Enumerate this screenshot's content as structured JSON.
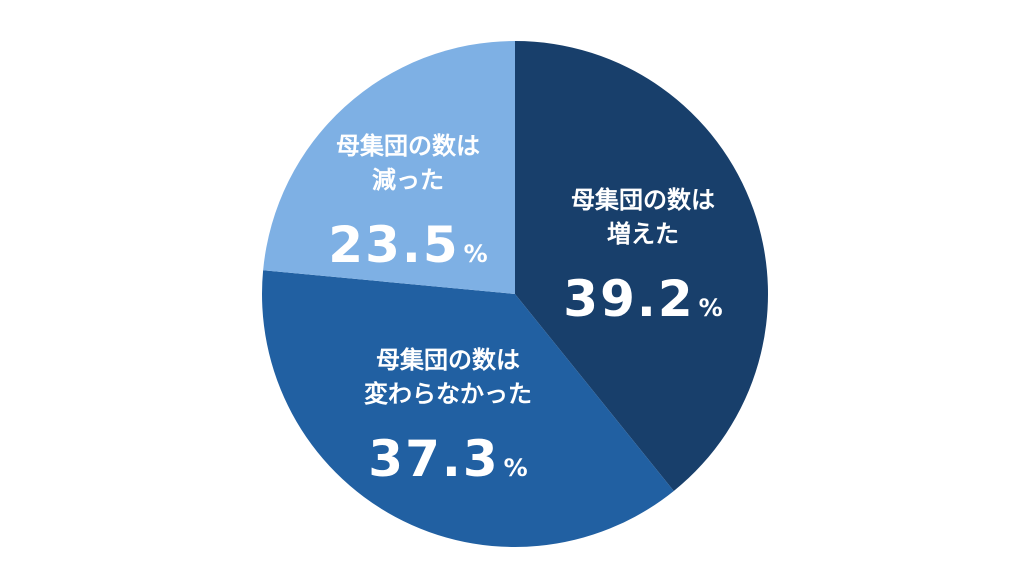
{
  "chart_data": {
    "type": "pie",
    "start_angle_deg": 0,
    "direction": "clockwise",
    "unit_symbol": "%",
    "slices": [
      {
        "label_lines": [
          "母集団の数は",
          "増えた"
        ],
        "value": 39.2,
        "value_text": "39.2",
        "color": "#183f6b"
      },
      {
        "label_lines": [
          "母集団の数は",
          "変わらなかった"
        ],
        "value": 37.3,
        "value_text": "37.3",
        "color": "#2160a2"
      },
      {
        "label_lines": [
          "母集団の数は",
          "減った"
        ],
        "value": 23.5,
        "value_text": "23.5",
        "color": "#7eb0e4"
      }
    ]
  }
}
